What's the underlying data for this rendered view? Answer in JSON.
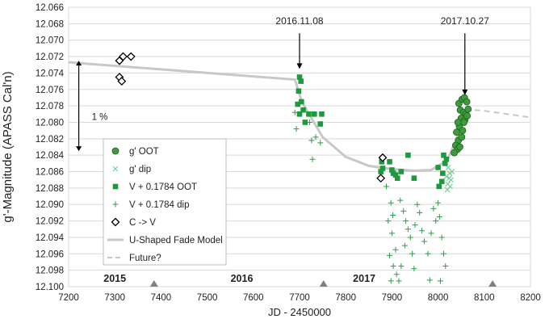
{
  "chart_data": {
    "type": "scatter",
    "title": "",
    "xlabel": "JD - 2450000",
    "ylabel": "g'-Magnitude (APASS Cal'n)",
    "xlim": [
      7200,
      8200
    ],
    "ylim": [
      12.066,
      12.1
    ],
    "y_inverted": true,
    "x_ticks": [
      7200,
      7300,
      7400,
      7500,
      7600,
      7700,
      7800,
      7900,
      8000,
      8100,
      8200
    ],
    "y_ticks": [
      12.066,
      12.068,
      12.07,
      12.072,
      12.074,
      12.076,
      12.078,
      12.08,
      12.082,
      12.084,
      12.086,
      12.088,
      12.09,
      12.092,
      12.094,
      12.096,
      12.098,
      12.1
    ],
    "y_tick_labels": [
      "12.066",
      "12.068",
      "12.070",
      "12.072",
      "12.074",
      "12.076",
      "12.078",
      "12.080",
      "12.082",
      "12.084",
      "12.086",
      "12.088",
      "12.090",
      "12.092",
      "12.094",
      "12.096",
      "12.098",
      "12.100"
    ],
    "grid": {
      "horizontal": true,
      "vertical": false
    },
    "legend_position": "lower-left inside",
    "year_labels": [
      {
        "text": "2015",
        "x": 7300
      },
      {
        "text": "2016",
        "x": 7575
      },
      {
        "text": "2017",
        "x": 7840
      }
    ],
    "year_markers_x": [
      7385,
      7752,
      8118
    ],
    "annotations": [
      {
        "text": "2016.11.08",
        "x": 7700,
        "y_text": 12.0663,
        "arrow_y1": 12.0672,
        "arrow_y2": 12.0735
      },
      {
        "text": "2017.10.27",
        "x": 8058,
        "y_text": 12.0663,
        "arrow_y1": 12.0672,
        "arrow_y2": 12.0767
      }
    ],
    "bracket": {
      "text": "1 %",
      "x": 7222,
      "y1": 12.0725,
      "y2": 12.0835,
      "label_y": 12.0793
    },
    "series": [
      {
        "name": "g' OOT",
        "marker": "circle",
        "color": "#3d9b3d",
        "points": [
          [
            8045,
            12.0777
          ],
          [
            8052,
            12.0772
          ],
          [
            8057,
            12.077
          ],
          [
            8062,
            12.0775
          ],
          [
            8048,
            12.0785
          ],
          [
            8055,
            12.0788
          ],
          [
            8060,
            12.079
          ],
          [
            8065,
            12.0784
          ],
          [
            8050,
            12.0795
          ],
          [
            8058,
            12.0797
          ],
          [
            8063,
            12.0792
          ],
          [
            8046,
            12.0805
          ],
          [
            8053,
            12.081
          ],
          [
            8040,
            12.0812
          ],
          [
            8044,
            12.0822
          ],
          [
            8051,
            12.0818
          ],
          [
            8038,
            12.0828
          ],
          [
            8042,
            12.0833
          ],
          [
            8035,
            12.0837
          ],
          [
            8047,
            12.083
          ],
          [
            8056,
            12.08
          ],
          [
            8043,
            12.08
          ]
        ]
      },
      {
        "name": "g' dip",
        "marker": "x",
        "color": "#6fcf8f",
        "points": [
          [
            8022,
            12.0855
          ],
          [
            8025,
            12.0862
          ],
          [
            8018,
            12.0866
          ],
          [
            8028,
            12.087
          ],
          [
            8021,
            12.0875
          ],
          [
            8026,
            12.0878
          ],
          [
            8020,
            12.0882
          ],
          [
            8024,
            12.0868
          ],
          [
            8030,
            12.086
          ]
        ]
      },
      {
        "name": "V + 0.1784 OOT",
        "marker": "square",
        "color": "#1e9a3e",
        "points": [
          [
            7700,
            12.0745
          ],
          [
            7703,
            12.075
          ],
          [
            7698,
            12.0762
          ],
          [
            7696,
            12.0778
          ],
          [
            7704,
            12.0775
          ],
          [
            7700,
            12.079
          ],
          [
            7708,
            12.0785
          ],
          [
            7712,
            12.08
          ],
          [
            7720,
            12.079
          ],
          [
            7732,
            12.079
          ],
          [
            7748,
            12.079
          ],
          [
            7745,
            12.0802
          ],
          [
            7878,
            12.0848
          ],
          [
            7880,
            12.0856
          ],
          [
            7876,
            12.086
          ],
          [
            7895,
            12.0848
          ],
          [
            7900,
            12.0858
          ],
          [
            7903,
            12.0862
          ],
          [
            7908,
            12.0864
          ],
          [
            7912,
            12.0868
          ],
          [
            7920,
            12.086
          ],
          [
            7935,
            12.084
          ],
          [
            7948,
            12.0868
          ],
          [
            8000,
            12.0855
          ],
          [
            8002,
            12.0878
          ],
          [
            8008,
            12.0872
          ],
          [
            8012,
            12.084
          ],
          [
            8015,
            12.085
          ],
          [
            8010,
            12.0862
          ],
          [
            8018,
            12.0845
          ]
        ]
      },
      {
        "name": "V + 0.1784 dip",
        "marker": "plus",
        "color": "#2f9a4f",
        "points": [
          [
            7690,
            12.0788
          ],
          [
            7693,
            12.0808
          ],
          [
            7722,
            12.08
          ],
          [
            7735,
            12.0818
          ],
          [
            7726,
            12.0822
          ],
          [
            7745,
            12.0825
          ],
          [
            7728,
            12.0845
          ],
          [
            7888,
            12.0878
          ],
          [
            7898,
            12.0898
          ],
          [
            7902,
            12.0913
          ],
          [
            7892,
            12.092
          ],
          [
            7900,
            12.0935
          ],
          [
            7908,
            12.0955
          ],
          [
            7895,
            12.0962
          ],
          [
            7903,
            12.0975
          ],
          [
            7910,
            12.0985
          ],
          [
            7898,
            12.0993
          ],
          [
            7918,
            12.0895
          ],
          [
            7925,
            12.0908
          ],
          [
            7930,
            12.092
          ],
          [
            7935,
            12.093
          ],
          [
            7940,
            12.094
          ],
          [
            7928,
            12.095
          ],
          [
            7944,
            12.096
          ],
          [
            7950,
            12.0925
          ],
          [
            7955,
            12.09
          ],
          [
            7960,
            12.091
          ],
          [
            7965,
            12.0932
          ],
          [
            7970,
            12.0945
          ],
          [
            7978,
            12.096
          ],
          [
            7985,
            12.0935
          ],
          [
            7990,
            12.0905
          ],
          [
            7995,
            12.092
          ],
          [
            8000,
            12.0898
          ],
          [
            8003,
            12.0915
          ],
          [
            8008,
            12.094
          ],
          [
            8012,
            12.096
          ],
          [
            8016,
            12.0975
          ],
          [
            7982,
            12.0992
          ],
          [
            8005,
            12.0993
          ],
          [
            7915,
            12.0993
          ],
          [
            7920,
            12.0975
          ],
          [
            7948,
            12.0978
          ]
        ]
      },
      {
        "name": "C -> V",
        "marker": "diamond",
        "color": "#000000",
        "points": [
          [
            7310,
            12.0725
          ],
          [
            7318,
            12.072
          ],
          [
            7335,
            12.072
          ],
          [
            7310,
            12.0745
          ],
          [
            7315,
            12.075
          ],
          [
            7880,
            12.0843
          ],
          [
            7876,
            12.0868
          ]
        ]
      },
      {
        "name": "U-Shaped Fade Model",
        "marker": "line",
        "color": "#c8c8c8",
        "points": [
          [
            7200,
            12.0727
          ],
          [
            7690,
            12.0748
          ],
          [
            7705,
            12.0775
          ],
          [
            7750,
            12.0818
          ],
          [
            7800,
            12.0842
          ],
          [
            7850,
            12.0853
          ],
          [
            7900,
            12.0857
          ],
          [
            7950,
            12.0859
          ],
          [
            7985,
            12.0858
          ],
          [
            8020,
            12.0846
          ],
          [
            8040,
            12.082
          ],
          [
            8058,
            12.0784
          ]
        ]
      },
      {
        "name": "Future?",
        "marker": "dash",
        "color": "#c8c8c8",
        "points": [
          [
            8058,
            12.0784
          ],
          [
            8100,
            12.0786
          ],
          [
            8150,
            12.079
          ],
          [
            8200,
            12.0794
          ]
        ]
      }
    ]
  }
}
